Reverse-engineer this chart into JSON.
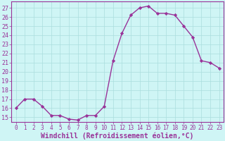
{
  "x": [
    0,
    1,
    2,
    3,
    4,
    5,
    6,
    7,
    8,
    9,
    10,
    11,
    12,
    13,
    14,
    15,
    16,
    17,
    18,
    19,
    20,
    21,
    22,
    23
  ],
  "y": [
    16,
    17,
    17,
    16.2,
    15.2,
    15.2,
    14.8,
    14.7,
    15.2,
    15.2,
    16.2,
    21.2,
    24.2,
    26.2,
    27,
    27.2,
    26.4,
    26.4,
    26.2,
    25,
    23.8,
    21.2,
    21.0,
    20.4
  ],
  "line_color": "#993399",
  "bg_color": "#cff5f5",
  "grid_color": "#aadddd",
  "xlabel": "Windchill (Refroidissement éolien,°C)",
  "yticks": [
    15,
    16,
    17,
    18,
    19,
    20,
    21,
    22,
    23,
    24,
    25,
    26,
    27
  ],
  "xticks": [
    0,
    1,
    2,
    3,
    4,
    5,
    6,
    7,
    8,
    9,
    10,
    11,
    12,
    13,
    14,
    15,
    16,
    17,
    18,
    19,
    20,
    21,
    22,
    23
  ],
  "ylim": [
    14.5,
    27.7
  ],
  "xlim": [
    -0.5,
    23.5
  ],
  "tick_color": "#993399",
  "xlabel_color": "#993399",
  "xlabel_fontsize": 7,
  "ytick_fontsize": 6,
  "xtick_fontsize": 5.5
}
